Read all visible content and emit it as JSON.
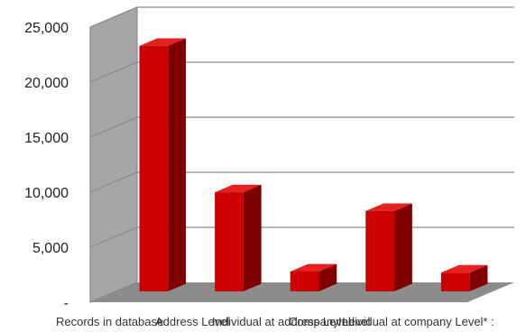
{
  "chart_data": {
    "type": "bar",
    "title": "",
    "xlabel": "",
    "ylabel": "",
    "ylim": [
      0,
      25000
    ],
    "yticks": [
      {
        "value": 0,
        "label": "-"
      },
      {
        "value": 5000,
        "label": "5,000"
      },
      {
        "value": 10000,
        "label": "10,000"
      },
      {
        "value": 15000,
        "label": "15,000"
      },
      {
        "value": 20000,
        "label": "20,000"
      },
      {
        "value": 25000,
        "label": "25,000"
      }
    ],
    "categories": [
      "Records in database",
      "Address Level",
      "Individual at address Level",
      "Company Level",
      "Individual at company  Level* :"
    ],
    "values": [
      22300,
      9000,
      1800,
      7300,
      1700
    ],
    "grid": true,
    "three_d": true,
    "colors": {
      "bar_front": "#cc0000",
      "bar_side": "#800000",
      "bar_top": "#e61f1f",
      "back_wall": "#ffffff",
      "side_wall": "#a6a6a6",
      "floor": "#8c8c8c",
      "gridline": "#8a8a8a"
    }
  }
}
